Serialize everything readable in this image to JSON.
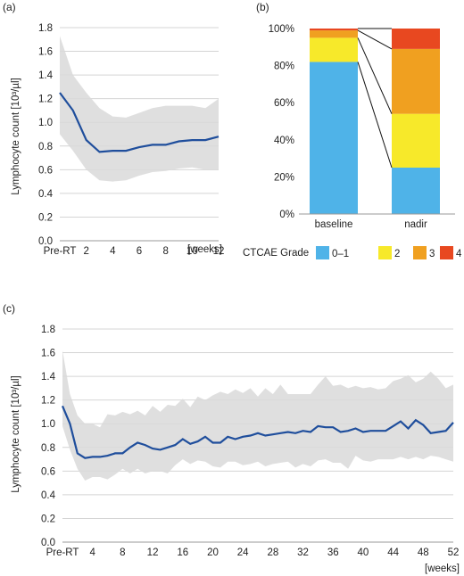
{
  "colors": {
    "line": "#1f4e9c",
    "band": "#d9d9d9",
    "grid": "#d4d4d4",
    "axis": "#999999",
    "grade_0_1": "#4fb3e8",
    "grade_2": "#f7e92a",
    "grade_3": "#f0a020",
    "grade_4": "#e84820"
  },
  "chart_data": [
    {
      "panel": "(a)",
      "type": "line",
      "ylabel": "Lymphocyte count [10³/µl]",
      "ylim": [
        0,
        1.8
      ],
      "yticks": [
        "0.0",
        "0.2",
        "0.4",
        "0.6",
        "0.8",
        "1.0",
        "1.2",
        "1.4",
        "1.6",
        "1.8"
      ],
      "xlim": [
        0,
        12
      ],
      "xticks": [
        "Pre-RT",
        "2",
        "4",
        "6",
        "8",
        "10",
        "12"
      ],
      "xtick_values": [
        0,
        2,
        4,
        6,
        8,
        10,
        12
      ],
      "x_unit": "[weeks]",
      "grid": "horizontal",
      "x": [
        0,
        1,
        2,
        3,
        4,
        5,
        6,
        7,
        8,
        9,
        10,
        11,
        12
      ],
      "median": [
        1.25,
        1.1,
        0.85,
        0.75,
        0.76,
        0.76,
        0.79,
        0.81,
        0.81,
        0.84,
        0.85,
        0.85,
        0.88
      ],
      "upper": [
        1.73,
        1.4,
        1.25,
        1.12,
        1.05,
        1.04,
        1.08,
        1.12,
        1.14,
        1.14,
        1.14,
        1.12,
        1.2
      ],
      "lower": [
        0.9,
        0.76,
        0.6,
        0.51,
        0.5,
        0.51,
        0.55,
        0.58,
        0.59,
        0.61,
        0.62,
        0.6,
        0.6
      ]
    },
    {
      "panel": "(b)",
      "type": "bar",
      "stacked": true,
      "categories": [
        "baseline",
        "nadir"
      ],
      "yticks": [
        "0%",
        "20%",
        "40%",
        "60%",
        "80%",
        "100%"
      ],
      "ylim": [
        0,
        100
      ],
      "legend_title": "CTCAE Grade",
      "legend_position": "bottom",
      "series": [
        {
          "name": "0–1",
          "values": [
            82,
            25
          ]
        },
        {
          "name": "2",
          "values": [
            13,
            29
          ]
        },
        {
          "name": "3",
          "values": [
            4,
            35
          ]
        },
        {
          "name": "4",
          "values": [
            1,
            11
          ]
        }
      ]
    },
    {
      "panel": "(c)",
      "type": "line",
      "ylabel": "Lymphocyte count [10³/µl]",
      "ylim": [
        0,
        1.8
      ],
      "yticks": [
        "0.0",
        "0.2",
        "0.4",
        "0.6",
        "0.8",
        "1.0",
        "1.2",
        "1.4",
        "1.6",
        "1.8"
      ],
      "xlim": [
        0,
        52
      ],
      "xticks": [
        "Pre-RT",
        "4",
        "8",
        "12",
        "16",
        "20",
        "24",
        "28",
        "32",
        "36",
        "40",
        "44",
        "48",
        "52"
      ],
      "xtick_values": [
        0,
        4,
        8,
        12,
        16,
        20,
        24,
        28,
        32,
        36,
        40,
        44,
        48,
        52
      ],
      "x_unit": "[weeks]",
      "grid": "horizontal",
      "x": [
        0,
        1,
        2,
        3,
        4,
        5,
        6,
        7,
        8,
        9,
        10,
        11,
        12,
        13,
        14,
        15,
        16,
        17,
        18,
        19,
        20,
        21,
        22,
        23,
        24,
        25,
        26,
        27,
        28,
        29,
        30,
        31,
        32,
        33,
        34,
        35,
        36,
        37,
        38,
        39,
        40,
        41,
        42,
        43,
        44,
        45,
        46,
        47,
        48,
        49,
        50,
        51,
        52
      ],
      "median": [
        1.15,
        1.0,
        0.75,
        0.71,
        0.72,
        0.72,
        0.73,
        0.75,
        0.75,
        0.8,
        0.84,
        0.82,
        0.79,
        0.78,
        0.8,
        0.82,
        0.87,
        0.83,
        0.85,
        0.89,
        0.84,
        0.84,
        0.89,
        0.87,
        0.89,
        0.9,
        0.92,
        0.9,
        0.91,
        0.92,
        0.93,
        0.92,
        0.94,
        0.93,
        0.98,
        0.97,
        0.97,
        0.93,
        0.94,
        0.96,
        0.93,
        0.94,
        0.94,
        0.94,
        0.98,
        1.02,
        0.96,
        1.03,
        0.99,
        0.92,
        0.93,
        0.94,
        1.01
      ],
      "upper": [
        1.62,
        1.25,
        1.07,
        1.0,
        1.0,
        0.97,
        1.08,
        1.07,
        1.1,
        1.08,
        1.11,
        1.07,
        1.15,
        1.1,
        1.16,
        1.15,
        1.21,
        1.14,
        1.23,
        1.2,
        1.24,
        1.27,
        1.25,
        1.29,
        1.26,
        1.3,
        1.23,
        1.3,
        1.25,
        1.33,
        1.25,
        1.25,
        1.25,
        1.25,
        1.33,
        1.4,
        1.32,
        1.33,
        1.3,
        1.32,
        1.3,
        1.31,
        1.29,
        1.3,
        1.36,
        1.38,
        1.41,
        1.35,
        1.38,
        1.44,
        1.38,
        1.3,
        1.33
      ],
      "lower": [
        0.98,
        0.78,
        0.62,
        0.52,
        0.55,
        0.55,
        0.53,
        0.57,
        0.62,
        0.58,
        0.62,
        0.58,
        0.6,
        0.6,
        0.58,
        0.65,
        0.7,
        0.66,
        0.69,
        0.68,
        0.64,
        0.63,
        0.68,
        0.68,
        0.65,
        0.66,
        0.68,
        0.64,
        0.66,
        0.67,
        0.68,
        0.63,
        0.66,
        0.64,
        0.69,
        0.7,
        0.67,
        0.67,
        0.62,
        0.73,
        0.69,
        0.68,
        0.7,
        0.7,
        0.7,
        0.72,
        0.7,
        0.72,
        0.7,
        0.73,
        0.72,
        0.7,
        0.68
      ]
    }
  ]
}
